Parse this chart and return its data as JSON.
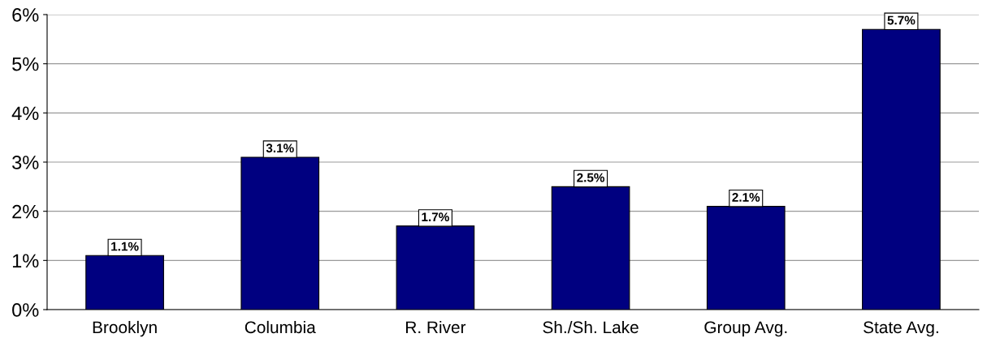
{
  "chart_data": {
    "type": "bar",
    "categories": [
      "Brooklyn",
      "Columbia",
      "R. River",
      "Sh./Sh. Lake",
      "Group Avg.",
      "State Avg."
    ],
    "values": [
      1.1,
      3.1,
      1.7,
      2.5,
      2.1,
      5.7
    ],
    "value_labels": [
      "1.1%",
      "3.1%",
      "1.7%",
      "2.5%",
      "2.1%",
      "5.7%"
    ],
    "color": "#000080",
    "ylim": [
      0,
      6
    ],
    "yticks": [
      {
        "value": 0,
        "label": "0%"
      },
      {
        "value": 1,
        "label": "1%"
      },
      {
        "value": 2,
        "label": "2%"
      },
      {
        "value": 3,
        "label": "3%"
      },
      {
        "value": 4,
        "label": "4%"
      },
      {
        "value": 5,
        "label": "5%"
      },
      {
        "value": 6,
        "label": "6%"
      }
    ],
    "grid": "y",
    "legend": false
  }
}
